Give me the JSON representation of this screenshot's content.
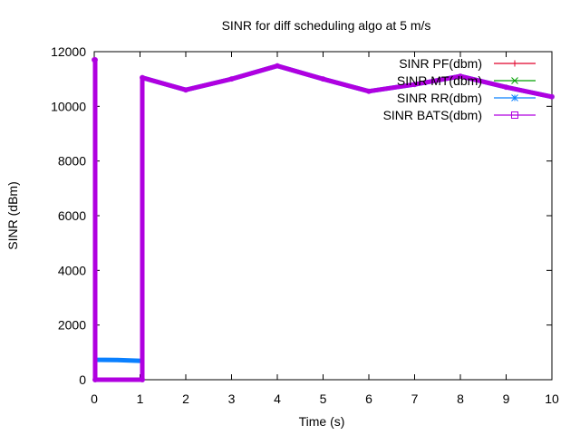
{
  "chart_data": {
    "type": "line",
    "title": "SINR for diff scheduling algo at 5 m/s",
    "xlabel": "Time (s)",
    "ylabel": "SINR (dBm)",
    "xlim": [
      0,
      10
    ],
    "ylim": [
      0,
      12000
    ],
    "x_ticks": [
      "0",
      "1",
      "2",
      "3",
      "4",
      "5",
      "6",
      "7",
      "8",
      "9",
      "10"
    ],
    "y_ticks": [
      "0",
      "2000",
      "4000",
      "6000",
      "8000",
      "10000",
      "12000"
    ],
    "grid": false,
    "legend_position": "top-right",
    "series": [
      {
        "name": "SINR PF(dbm)",
        "color": "#e0002a",
        "marker": "plus",
        "x": [
          0,
          0.02,
          0.02,
          1.05,
          1.05,
          2,
          3,
          4,
          5,
          6,
          7,
          8,
          9,
          10
        ],
        "y": [
          11700,
          11700,
          0,
          0,
          11050,
          10600,
          11000,
          11480,
          11000,
          10550,
          10800,
          11100,
          10700,
          10350
        ]
      },
      {
        "name": "SINR MT(dbm)",
        "color": "#00a000",
        "marker": "cross",
        "x": [
          0,
          0.02,
          0.02,
          1.05,
          1.05,
          2,
          3,
          4,
          5,
          6,
          7,
          8,
          9,
          10
        ],
        "y": [
          11700,
          11700,
          0,
          0,
          11050,
          10600,
          11000,
          11480,
          11000,
          10550,
          10800,
          11100,
          10700,
          10350
        ]
      },
      {
        "name": "SINR RR(dbm)",
        "color": "#0a80ff",
        "marker": "star",
        "x": [
          0,
          0.02,
          0.02,
          0.5,
          1.05,
          1.05,
          2,
          3,
          4,
          5,
          6,
          7,
          8,
          9,
          10
        ],
        "y": [
          11700,
          11700,
          730,
          720,
          690,
          11050,
          10600,
          11000,
          11480,
          11000,
          10550,
          10800,
          11100,
          10700,
          10350
        ]
      },
      {
        "name": "SINR BATS(dbm)",
        "color": "#b000e0",
        "marker": "square",
        "x": [
          0,
          0.02,
          0.02,
          1.05,
          1.05,
          2,
          3,
          4,
          5,
          6,
          7,
          8,
          9,
          10
        ],
        "y": [
          11700,
          11700,
          0,
          0,
          11050,
          10600,
          11000,
          11480,
          11000,
          10550,
          10800,
          11100,
          10700,
          10350
        ]
      }
    ]
  }
}
